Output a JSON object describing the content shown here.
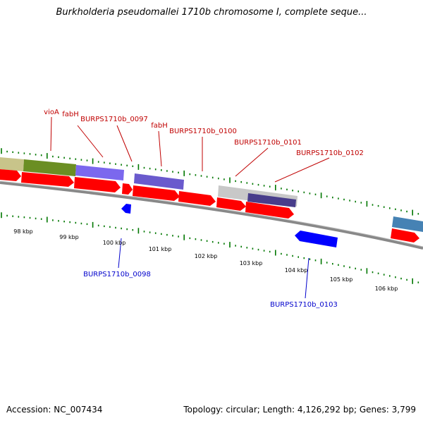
{
  "title": "Burkholderia pseudomallei 1710b chromosome I, complete seque...",
  "footer": {
    "accession": "Accession: NC_007434",
    "topology": "Topology: circular; Length: 4,126,292 bp; Genes: 3,799"
  },
  "colors": {
    "forward_cds": "#ff0000",
    "reverse_cds": "#0000ff",
    "gene_label_forward": "#c00000",
    "gene_label_reverse": "#0000cc",
    "tick": "#007700",
    "backbone": "#888888",
    "olive": "#6b8e23",
    "khaki": "#c8c48a",
    "slate_purple": "#7b68ee",
    "light_gray": "#cccccc",
    "dark_slate": "#483d8b",
    "steel_blue": "#4682b4"
  },
  "scale_labels": [
    "98 kbp",
    "99 kbp",
    "100 kbp",
    "101 kbp",
    "102 kbp",
    "103 kbp",
    "104 kbp",
    "105 kbp",
    "106 kbp"
  ],
  "gene_labels_forward": [
    "vioA",
    "fabH",
    "BURPS1710b_0097",
    "fabH",
    "BURPS1710b_0100",
    "BURPS1710b_0101",
    "BURPS1710b_0102"
  ],
  "gene_labels_reverse": [
    "BURPS1710b_0098",
    "BURPS1710b_0103"
  ]
}
